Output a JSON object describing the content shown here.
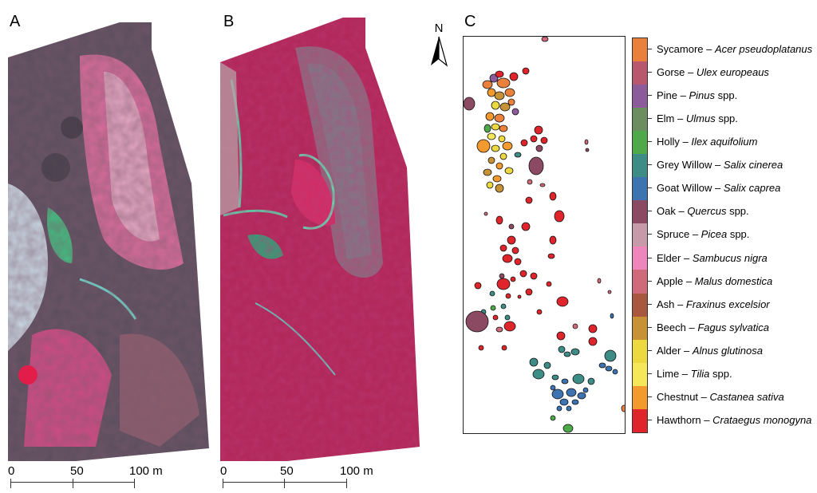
{
  "panels": {
    "a": {
      "letter": "A"
    },
    "b": {
      "letter": "B"
    },
    "c": {
      "letter": "C"
    }
  },
  "scalebar": {
    "ticks": [
      "0",
      "50",
      "100 m"
    ]
  },
  "north_arrow": {
    "label": "N",
    "icon": "north-arrow-icon"
  },
  "legend": {
    "items": [
      {
        "common": "Sycamore",
        "sep": " – ",
        "sci": "Acer pseudoplatanus",
        "color": "#e9803c"
      },
      {
        "common": "Gorse",
        "sep": " – ",
        "sci": "Ulex europeaus",
        "color": "#b8576e"
      },
      {
        "common": "Pine",
        "sep": " – ",
        "sci": "Pinus",
        "suffix": " spp.",
        "color": "#8c5b9a"
      },
      {
        "common": "Elm",
        "sep": " – ",
        "sci": "Ulmus",
        "suffix": " spp.",
        "color": "#6c8d5f"
      },
      {
        "common": "Holly",
        "sep": " – ",
        "sci": "Ilex aquifolium",
        "color": "#4fa84a"
      },
      {
        "common": "Grey Willow",
        "sep": " – ",
        "sci": "Salix cinerea",
        "color": "#3e8c86"
      },
      {
        "common": "Goat Willow",
        "sep": " – ",
        "sci": "Salix caprea",
        "color": "#3d73b1"
      },
      {
        "common": "Oak",
        "sep": " – ",
        "sci": "Quercus",
        "suffix": " spp.",
        "color": "#8c4a62"
      },
      {
        "common": "Spruce",
        "sep": " – ",
        "sci": "Picea",
        "suffix": " spp.",
        "color": "#c79aaa"
      },
      {
        "common": "Elder",
        "sep": " – ",
        "sci": "Sambucus nigra",
        "color": "#ee86bb"
      },
      {
        "common": "Apple",
        "sep": " – ",
        "sci": "Malus domestica",
        "color": "#cf6a7a"
      },
      {
        "common": "Ash",
        "sep": " – ",
        "sci": "Fraxinus excelsior",
        "color": "#a9573f"
      },
      {
        "common": "Beech",
        "sep": " – ",
        "sci": "Fagus sylvatica",
        "color": "#c79236"
      },
      {
        "common": "Alder",
        "sep": " – ",
        "sci": "Alnus glutinosa",
        "color": "#ecd93f"
      },
      {
        "common": "Lime",
        "sep": " – ",
        "sci": "Tilia",
        "suffix": " spp.",
        "color": "#f5e75a"
      },
      {
        "common": "Chestnut",
        "sep": " – ",
        "sci": "Castanea sativa",
        "color": "#f39a2f"
      },
      {
        "common": "Hawthorn",
        "sep": " – ",
        "sci": "Crataegus monogyna",
        "color": "#e0242c"
      }
    ]
  }
}
